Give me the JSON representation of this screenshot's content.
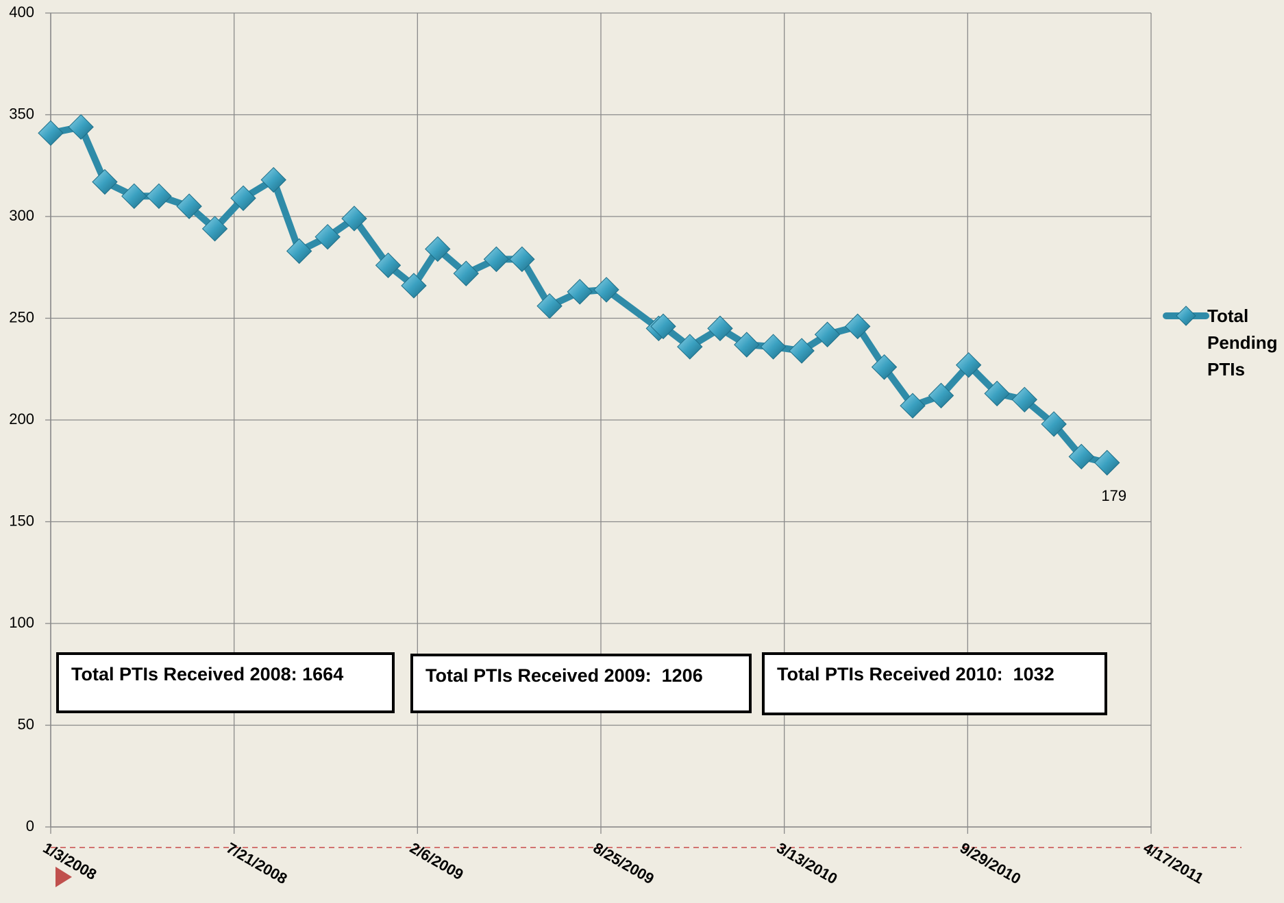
{
  "chart_data": {
    "type": "line",
    "x": [
      "1/3/2008",
      "2/5/2008",
      "3/2/2008",
      "4/3/2008",
      "4/30/2008",
      "6/2/2008",
      "6/30/2008",
      "7/31/2008",
      "9/2/2008",
      "9/30/2008",
      "10/31/2008",
      "11/29/2008",
      "1/5/2009",
      "2/2/2009",
      "2/28/2009",
      "3/31/2009",
      "5/3/2009",
      "5/31/2009",
      "6/30/2009",
      "8/2/2009",
      "8/31/2009",
      "10/27/2009",
      "11/1/2009",
      "11/30/2009",
      "1/2/2010",
      "1/31/2010",
      "3/1/2010",
      "4/1/2010",
      "4/29/2010",
      "6/1/2010",
      "6/30/2010",
      "7/31/2010",
      "8/31/2010",
      "9/30/2010",
      "10/31/2010",
      "11/30/2010",
      "1/1/2011",
      "1/31/2011",
      "2/28/2011"
    ],
    "series": [
      {
        "name": "Total Pending PTIs",
        "color": "#2f8ba8",
        "values": [
          341,
          344,
          317,
          310,
          310,
          305,
          294,
          309,
          318,
          283,
          290,
          299,
          276,
          266,
          284,
          272,
          279,
          279,
          256,
          263,
          264,
          245,
          246,
          236,
          245,
          237,
          236,
          234,
          242,
          246,
          226,
          207,
          212,
          227,
          213,
          210,
          198,
          182,
          179
        ],
        "value_labels": [
          null,
          null,
          null,
          null,
          null,
          null,
          null,
          null,
          null,
          null,
          null,
          null,
          null,
          null,
          null,
          null,
          null,
          null,
          null,
          null,
          null,
          null,
          null,
          null,
          null,
          null,
          null,
          null,
          null,
          null,
          null,
          null,
          null,
          null,
          null,
          null,
          null,
          null,
          "179"
        ]
      }
    ],
    "xlim": [
      "1/3/2008",
      "4/17/2011"
    ],
    "xticks": [
      "1/3/2008",
      "7/21/2008",
      "2/6/2009",
      "8/25/2009",
      "3/13/2010",
      "9/29/2010",
      "4/17/2011"
    ],
    "ylim": [
      0,
      400
    ],
    "yticks": [
      0,
      50,
      100,
      150,
      200,
      250,
      300,
      350,
      400
    ],
    "grid": true,
    "legend": "right",
    "annotations": [
      "Total PTIs Received 2008: 1664",
      "Total PTIs Received 2009:  1206",
      "Total PTIs Received 2010:  1032"
    ]
  }
}
